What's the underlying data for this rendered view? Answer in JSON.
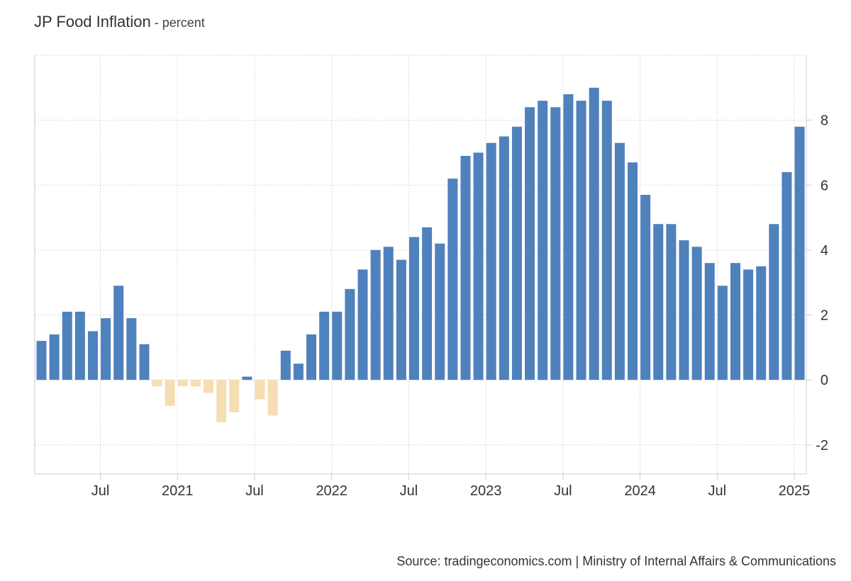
{
  "header": {
    "title": "JP Food Inflation",
    "unit": " - percent"
  },
  "footer": {
    "source": "Source: tradingeconomics.com | Ministry of Internal Affairs & Communications"
  },
  "colors": {
    "positive": "#4f81bd",
    "negative": "#f5deb3",
    "grid": "#d9d9d9",
    "axis": "#cccccc"
  },
  "chart_data": {
    "type": "bar",
    "title": "JP Food Inflation",
    "ylabel": "percent",
    "ylim": [
      -2.9,
      10
    ],
    "yticks": [
      -2,
      0,
      2,
      4,
      6,
      8
    ],
    "xticks": [
      "Jul",
      "2021",
      "Jul",
      "2022",
      "Jul",
      "2023",
      "Jul",
      "2024",
      "Jul",
      "2025"
    ],
    "grid": true,
    "categories": [
      "2020-02",
      "2020-03",
      "2020-04",
      "2020-05",
      "2020-06",
      "2020-07",
      "2020-08",
      "2020-09",
      "2020-10",
      "2020-11",
      "2020-12",
      "2021-01",
      "2021-02",
      "2021-03",
      "2021-04",
      "2021-05",
      "2021-06",
      "2021-07",
      "2021-08",
      "2021-09",
      "2021-10",
      "2021-11",
      "2021-12",
      "2022-01",
      "2022-02",
      "2022-03",
      "2022-04",
      "2022-05",
      "2022-06",
      "2022-07",
      "2022-08",
      "2022-09",
      "2022-10",
      "2022-11",
      "2022-12",
      "2023-01",
      "2023-02",
      "2023-03",
      "2023-04",
      "2023-05",
      "2023-06",
      "2023-07",
      "2023-08",
      "2023-09",
      "2023-10",
      "2023-11",
      "2023-12",
      "2024-01",
      "2024-02",
      "2024-03",
      "2024-04",
      "2024-05",
      "2024-06",
      "2024-07",
      "2024-08",
      "2024-09",
      "2024-10",
      "2024-11",
      "2024-12",
      "2025-01"
    ],
    "values": [
      1.2,
      1.4,
      2.1,
      2.1,
      1.5,
      1.9,
      2.9,
      1.9,
      1.1,
      -0.2,
      -0.8,
      -0.2,
      -0.2,
      -0.4,
      -1.3,
      -1.0,
      0.1,
      -0.6,
      -1.1,
      0.9,
      0.5,
      1.4,
      2.1,
      2.1,
      2.8,
      3.4,
      4.0,
      4.1,
      3.7,
      4.4,
      4.7,
      4.2,
      6.2,
      6.9,
      7.0,
      7.3,
      7.5,
      7.8,
      8.4,
      8.6,
      8.4,
      8.8,
      8.6,
      9.0,
      8.6,
      7.3,
      6.7,
      5.7,
      4.8,
      4.8,
      4.3,
      4.1,
      3.6,
      2.9,
      3.6,
      3.4,
      3.5,
      4.8,
      6.4,
      7.8
    ]
  }
}
